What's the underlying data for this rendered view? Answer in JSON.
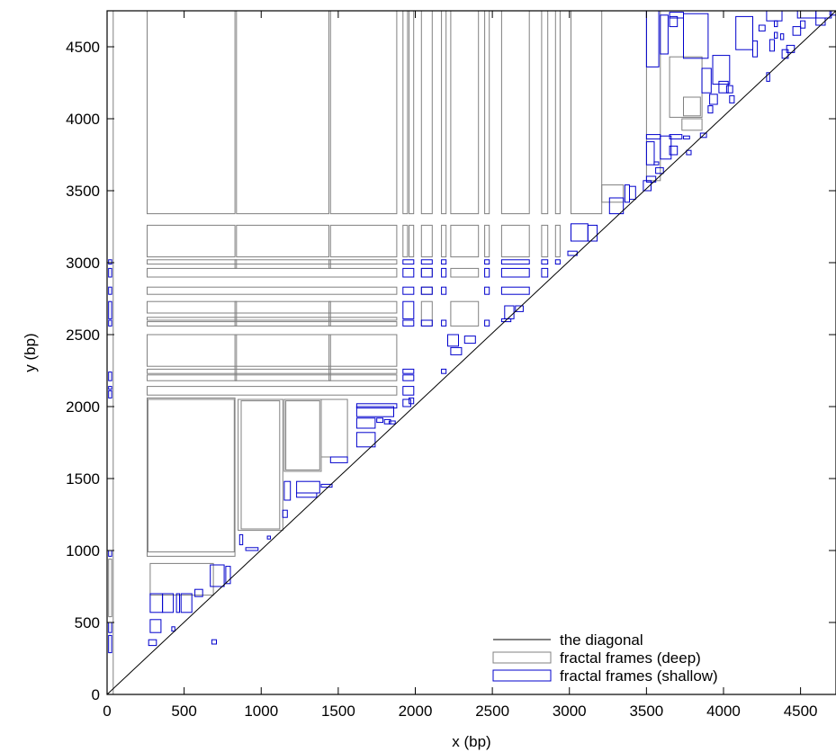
{
  "chart_data": {
    "type": "scatter",
    "title": "",
    "xlabel": "x (bp)",
    "ylabel": "y (bp)",
    "xlim": [
      0,
      4730
    ],
    "ylim": [
      0,
      4750
    ],
    "xticks": [
      0,
      500,
      1000,
      1500,
      2000,
      2500,
      3000,
      3500,
      4000,
      4500
    ],
    "yticks": [
      0,
      500,
      1000,
      1500,
      2000,
      2500,
      3000,
      3500,
      4000,
      4500
    ],
    "grid": false,
    "legend_position": "bottom-right",
    "colors": {
      "diagonal": "#000000",
      "deep": "#808080",
      "shallow": "#0000cc"
    },
    "legend": [
      {
        "label": "the diagonal",
        "style": "line",
        "color": "#000000"
      },
      {
        "label": "fractal frames (deep)",
        "style": "box",
        "color": "#808080"
      },
      {
        "label": "fractal frames (shallow)",
        "style": "box",
        "color": "#0000cc"
      }
    ],
    "series": [
      {
        "name": "the diagonal",
        "type": "line",
        "points": [
          [
            0,
            0
          ],
          [
            4730,
            4750
          ]
        ]
      },
      {
        "name": "fractal frames (deep)",
        "type": "rect",
        "rects": [
          [
            0,
            0,
            40,
            4750
          ],
          [
            10,
            540,
            30,
            940
          ],
          [
            260,
            3340,
            830,
            4750
          ],
          [
            840,
            3340,
            1440,
            4750
          ],
          [
            1450,
            3340,
            1880,
            4750
          ],
          [
            1920,
            3340,
            1950,
            4750
          ],
          [
            1960,
            3340,
            1990,
            4750
          ],
          [
            2040,
            3340,
            2110,
            4750
          ],
          [
            2170,
            3340,
            2200,
            4750
          ],
          [
            2230,
            3340,
            2410,
            4750
          ],
          [
            2450,
            3340,
            2480,
            4750
          ],
          [
            2560,
            3340,
            2740,
            4750
          ],
          [
            2820,
            3340,
            2860,
            4750
          ],
          [
            2910,
            3340,
            2940,
            4750
          ],
          [
            3010,
            3340,
            3210,
            4750
          ],
          [
            260,
            3040,
            830,
            3260
          ],
          [
            840,
            3040,
            1440,
            3260
          ],
          [
            1450,
            3040,
            1880,
            3260
          ],
          [
            1920,
            3040,
            1950,
            3260
          ],
          [
            1960,
            3040,
            1990,
            3260
          ],
          [
            2040,
            3040,
            2110,
            3260
          ],
          [
            2170,
            3040,
            2200,
            3260
          ],
          [
            2230,
            3040,
            2410,
            3260
          ],
          [
            2450,
            3040,
            2480,
            3260
          ],
          [
            2560,
            3040,
            2740,
            3260
          ],
          [
            2820,
            3040,
            2860,
            3260
          ],
          [
            2910,
            3040,
            2940,
            3260
          ],
          [
            260,
            2990,
            1880,
            3020
          ],
          [
            260,
            2900,
            1880,
            2960
          ],
          [
            260,
            2780,
            1880,
            2830
          ],
          [
            260,
            2650,
            1880,
            2730
          ],
          [
            260,
            2600,
            1880,
            2620
          ],
          [
            260,
            2560,
            1880,
            2590
          ],
          [
            260,
            2280,
            1880,
            2500
          ],
          [
            260,
            2230,
            1880,
            2260
          ],
          [
            260,
            2180,
            1880,
            2220
          ],
          [
            260,
            2080,
            1880,
            2140
          ],
          [
            830,
            2960,
            840,
            3020
          ],
          [
            1440,
            2960,
            1450,
            3020
          ],
          [
            830,
            2560,
            840,
            2730
          ],
          [
            1440,
            2560,
            1450,
            2730
          ],
          [
            830,
            2180,
            840,
            2500
          ],
          [
            1440,
            2180,
            1450,
            2500
          ],
          [
            2040,
            2560,
            2110,
            2730
          ],
          [
            2230,
            2560,
            2410,
            2730
          ],
          [
            2040,
            2900,
            2110,
            2960
          ],
          [
            2230,
            2900,
            2410,
            2960
          ],
          [
            2040,
            2780,
            2110,
            2830
          ],
          [
            260,
            960,
            830,
            2060
          ],
          [
            265,
            990,
            825,
            2050
          ],
          [
            850,
            1140,
            1140,
            2050
          ],
          [
            870,
            1150,
            1120,
            2040
          ],
          [
            1150,
            1550,
            1390,
            2050
          ],
          [
            1160,
            1560,
            1380,
            2040
          ],
          [
            1390,
            1650,
            1560,
            2050
          ],
          [
            280,
            690,
            690,
            910
          ],
          [
            3210,
            3420,
            3350,
            3540
          ],
          [
            3500,
            3570,
            3590,
            4750
          ],
          [
            3650,
            4010,
            3860,
            4430
          ],
          [
            3740,
            4020,
            3850,
            4150
          ],
          [
            3730,
            3920,
            3860,
            4000
          ]
        ]
      },
      {
        "name": "fractal frames (shallow)",
        "type": "rect",
        "rects": [
          [
            10,
            290,
            30,
            410
          ],
          [
            10,
            430,
            30,
            500
          ],
          [
            10,
            960,
            30,
            1000
          ],
          [
            10,
            2060,
            30,
            2110
          ],
          [
            10,
            2120,
            30,
            2140
          ],
          [
            10,
            2180,
            30,
            2240
          ],
          [
            10,
            2560,
            30,
            2600
          ],
          [
            10,
            2610,
            30,
            2730
          ],
          [
            10,
            2780,
            30,
            2830
          ],
          [
            10,
            2900,
            30,
            2960
          ],
          [
            10,
            2990,
            30,
            3020
          ],
          [
            270,
            340,
            320,
            380
          ],
          [
            280,
            430,
            350,
            520
          ],
          [
            280,
            570,
            360,
            700
          ],
          [
            360,
            570,
            430,
            700
          ],
          [
            450,
            570,
            470,
            700
          ],
          [
            480,
            570,
            550,
            700
          ],
          [
            570,
            680,
            620,
            730
          ],
          [
            670,
            750,
            760,
            900
          ],
          [
            770,
            770,
            800,
            890
          ],
          [
            680,
            350,
            710,
            380
          ],
          [
            420,
            440,
            440,
            470
          ],
          [
            860,
            1040,
            880,
            1110
          ],
          [
            900,
            1000,
            980,
            1020
          ],
          [
            1040,
            1080,
            1060,
            1100
          ],
          [
            1140,
            1230,
            1170,
            1280
          ],
          [
            1150,
            1350,
            1190,
            1480
          ],
          [
            1230,
            1400,
            1380,
            1480
          ],
          [
            1230,
            1370,
            1360,
            1400
          ],
          [
            1390,
            1440,
            1460,
            1460
          ],
          [
            1450,
            1610,
            1560,
            1650
          ],
          [
            1620,
            1720,
            1740,
            1820
          ],
          [
            1620,
            1850,
            1740,
            1920
          ],
          [
            1620,
            1930,
            1860,
            2000
          ],
          [
            1620,
            1990,
            1880,
            2020
          ],
          [
            1750,
            1890,
            1790,
            1920
          ],
          [
            1800,
            1880,
            1840,
            1910
          ],
          [
            1830,
            1880,
            1870,
            1900
          ],
          [
            1920,
            2000,
            1970,
            2050
          ],
          [
            1960,
            2020,
            1990,
            2060
          ],
          [
            1920,
            2080,
            1990,
            2140
          ],
          [
            1920,
            2180,
            1990,
            2220
          ],
          [
            1920,
            2230,
            1990,
            2260
          ],
          [
            2170,
            2230,
            2200,
            2260
          ],
          [
            2210,
            2420,
            2280,
            2500
          ],
          [
            2230,
            2360,
            2300,
            2410
          ],
          [
            2320,
            2440,
            2390,
            2490
          ],
          [
            1920,
            2560,
            1990,
            2600
          ],
          [
            1920,
            2610,
            1990,
            2730
          ],
          [
            2040,
            2560,
            2110,
            2600
          ],
          [
            2170,
            2560,
            2200,
            2600
          ],
          [
            2450,
            2560,
            2480,
            2600
          ],
          [
            2560,
            2590,
            2620,
            2610
          ],
          [
            2580,
            2610,
            2640,
            2700
          ],
          [
            2650,
            2660,
            2700,
            2700
          ],
          [
            1920,
            2780,
            1990,
            2830
          ],
          [
            2040,
            2780,
            2110,
            2830
          ],
          [
            2170,
            2780,
            2200,
            2830
          ],
          [
            2450,
            2780,
            2480,
            2830
          ],
          [
            2560,
            2780,
            2740,
            2830
          ],
          [
            1920,
            2900,
            1990,
            2960
          ],
          [
            2040,
            2900,
            2110,
            2960
          ],
          [
            2170,
            2900,
            2200,
            2960
          ],
          [
            2450,
            2900,
            2480,
            2960
          ],
          [
            2560,
            2900,
            2740,
            2960
          ],
          [
            2820,
            2900,
            2860,
            2960
          ],
          [
            1920,
            2990,
            1990,
            3020
          ],
          [
            2040,
            2990,
            2110,
            3020
          ],
          [
            2170,
            2990,
            2200,
            3020
          ],
          [
            2450,
            2990,
            2480,
            3020
          ],
          [
            2560,
            2990,
            2740,
            3020
          ],
          [
            2820,
            2990,
            2860,
            3020
          ],
          [
            2910,
            2990,
            2940,
            3020
          ],
          [
            2990,
            3050,
            3050,
            3080
          ],
          [
            3010,
            3150,
            3120,
            3270
          ],
          [
            3120,
            3150,
            3180,
            3260
          ],
          [
            3260,
            3340,
            3350,
            3450
          ],
          [
            3360,
            3420,
            3390,
            3540
          ],
          [
            3390,
            3440,
            3430,
            3530
          ],
          [
            3480,
            3500,
            3530,
            3570
          ],
          [
            3500,
            3560,
            3560,
            3600
          ],
          [
            3560,
            3620,
            3610,
            3660
          ],
          [
            3550,
            3680,
            3580,
            3700
          ],
          [
            3500,
            3680,
            3550,
            3840
          ],
          [
            3500,
            3860,
            3590,
            3890
          ],
          [
            3650,
            3860,
            3730,
            3890
          ],
          [
            3590,
            3720,
            3660,
            3880
          ],
          [
            3650,
            3750,
            3700,
            3810
          ],
          [
            3760,
            3750,
            3790,
            3780
          ],
          [
            3740,
            3860,
            3780,
            3880
          ],
          [
            3850,
            3870,
            3890,
            3900
          ],
          [
            3500,
            4360,
            3580,
            4750
          ],
          [
            3590,
            4450,
            3640,
            4720
          ],
          [
            3650,
            4640,
            3700,
            4710
          ],
          [
            3650,
            4700,
            3740,
            4740
          ],
          [
            3740,
            4420,
            3900,
            4730
          ],
          [
            3860,
            4180,
            3920,
            4350
          ],
          [
            3900,
            4040,
            3930,
            4090
          ],
          [
            3910,
            4100,
            3960,
            4170
          ],
          [
            3930,
            4240,
            4040,
            4440
          ],
          [
            3970,
            4180,
            4030,
            4260
          ],
          [
            4020,
            4180,
            4060,
            4230
          ],
          [
            4040,
            4110,
            4070,
            4160
          ],
          [
            4080,
            4480,
            4190,
            4710
          ],
          [
            4190,
            4430,
            4220,
            4540
          ],
          [
            4230,
            4610,
            4270,
            4650
          ],
          [
            4280,
            4260,
            4300,
            4320
          ],
          [
            4300,
            4470,
            4330,
            4550
          ],
          [
            4330,
            4560,
            4350,
            4600
          ],
          [
            4370,
            4550,
            4390,
            4590
          ],
          [
            4330,
            4640,
            4350,
            4680
          ],
          [
            4280,
            4680,
            4380,
            4750
          ],
          [
            4380,
            4420,
            4420,
            4480
          ],
          [
            4410,
            4460,
            4460,
            4510
          ],
          [
            4450,
            4580,
            4500,
            4640
          ],
          [
            4500,
            4630,
            4530,
            4680
          ],
          [
            4480,
            4700,
            4600,
            4750
          ],
          [
            4600,
            4650,
            4660,
            4700
          ],
          [
            4600,
            4700,
            4700,
            4750
          ],
          [
            4690,
            4720,
            4730,
            4750
          ]
        ]
      }
    ]
  }
}
